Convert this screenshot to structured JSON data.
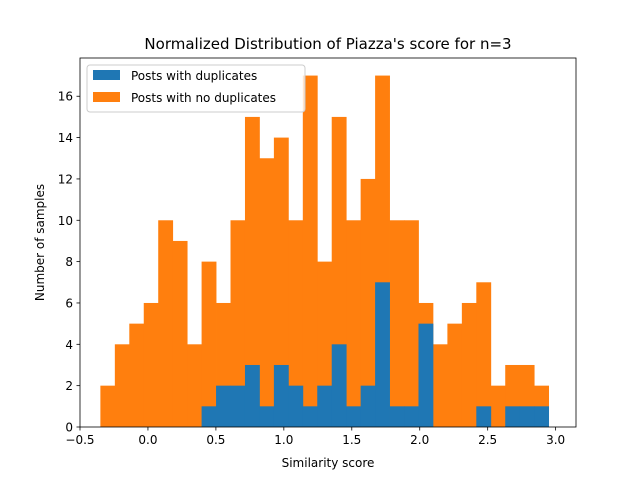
{
  "chart_data": {
    "type": "bar",
    "title": "Normalized Distribution of Piazza's score for n=3",
    "xlabel": "Similarity score",
    "ylabel": "Number of samples",
    "xlim": [
      -0.5,
      3.15
    ],
    "ylim": [
      0,
      17.85
    ],
    "xticks": [
      -0.5,
      0.0,
      0.5,
      1.0,
      1.5,
      2.0,
      2.5,
      3.0
    ],
    "xtick_labels": [
      "−0.5",
      "0.0",
      "0.5",
      "1.0",
      "1.5",
      "2.0",
      "2.5",
      "3.0"
    ],
    "yticks": [
      0,
      2,
      4,
      6,
      8,
      10,
      12,
      14,
      16
    ],
    "ytick_labels": [
      "0",
      "2",
      "4",
      "6",
      "8",
      "10",
      "12",
      "14",
      "16"
    ],
    "bin_edges": [
      -0.35,
      -0.2436,
      -0.1372,
      -0.0308,
      0.0756,
      0.182,
      0.2884,
      0.3948,
      0.5012,
      0.6076,
      0.714,
      0.8204,
      0.9268,
      1.0332,
      1.1396,
      1.246,
      1.3524,
      1.4588,
      1.5652,
      1.6716,
      1.778,
      1.8844,
      1.9908,
      2.0972,
      2.2036,
      2.31,
      2.4164,
      2.5228,
      2.6292,
      2.7356,
      2.842,
      2.9484,
      3.0548
    ],
    "legend_position": "upper left",
    "grid": false,
    "series": [
      {
        "name": "Posts with no duplicates",
        "color": "#ff7f0e",
        "values": [
          2,
          4,
          5,
          6,
          10,
          9,
          4,
          8,
          6,
          10,
          15,
          13,
          14,
          10,
          17,
          8,
          15,
          10,
          12,
          17,
          10,
          10,
          6,
          4,
          5,
          6,
          7,
          2,
          3,
          3,
          2,
          0
        ]
      },
      {
        "name": "Posts with duplicates",
        "color": "#1f77b4",
        "values": [
          0,
          0,
          0,
          0,
          0,
          0,
          0,
          1,
          2,
          2,
          3,
          1,
          3,
          2,
          1,
          2,
          4,
          1,
          2,
          7,
          1,
          1,
          5,
          0,
          0,
          0,
          1,
          0,
          1,
          1,
          1,
          0
        ]
      }
    ],
    "legend": [
      "Posts with duplicates",
      "Posts with no duplicates"
    ]
  }
}
